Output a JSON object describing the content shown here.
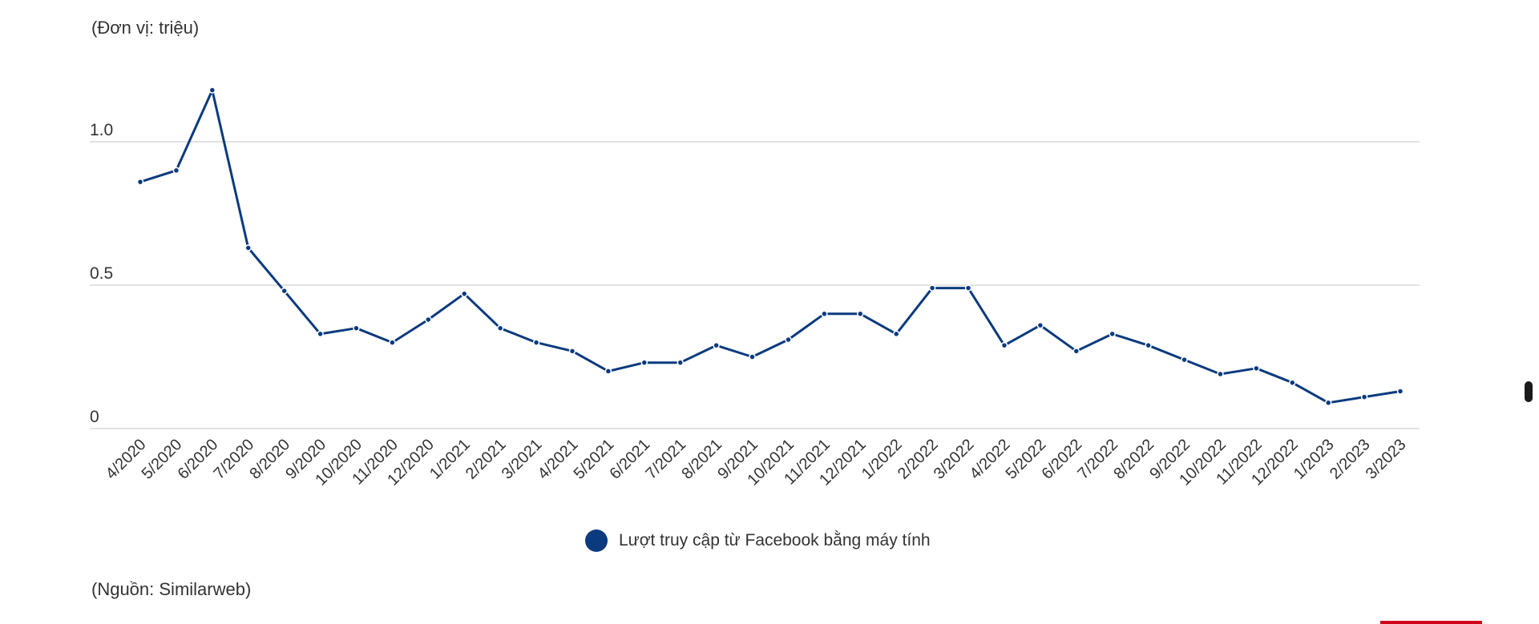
{
  "unit_note": "(Đơn vị: triệu)",
  "source_note": "(Nguồn: Similarweb)",
  "colors": {
    "series": "#0b3a7e",
    "grid": "#d9d9d9",
    "text": "#333333",
    "accent": "#d0021b"
  },
  "chart_data": {
    "type": "line",
    "categories": [
      "4/2020",
      "5/2020",
      "6/2020",
      "7/2020",
      "8/2020",
      "9/2020",
      "10/2020",
      "11/2020",
      "12/2020",
      "1/2021",
      "2/2021",
      "3/2021",
      "4/2021",
      "5/2021",
      "6/2021",
      "7/2021",
      "8/2021",
      "9/2021",
      "10/2021",
      "11/2021",
      "12/2021",
      "1/2022",
      "2/2022",
      "3/2022",
      "4/2022",
      "5/2022",
      "6/2022",
      "7/2022",
      "8/2022",
      "9/2022",
      "10/2022",
      "11/2022",
      "12/2022",
      "1/2023",
      "2/2023",
      "3/2023"
    ],
    "series": [
      {
        "name": "Lượt truy cập từ Facebook bằng máy tính",
        "values": [
          0.86,
          0.9,
          1.18,
          0.63,
          0.48,
          0.33,
          0.35,
          0.3,
          0.38,
          0.47,
          0.35,
          0.3,
          0.27,
          0.2,
          0.23,
          0.23,
          0.29,
          0.25,
          0.31,
          0.4,
          0.4,
          0.33,
          0.49,
          0.49,
          0.29,
          0.36,
          0.27,
          0.33,
          0.29,
          0.24,
          0.19,
          0.21,
          0.16,
          0.09,
          0.11,
          0.13
        ]
      }
    ],
    "yticks": [
      {
        "value": 0,
        "label": "0"
      },
      {
        "value": 0.5,
        "label": "0.5"
      },
      {
        "value": 1.0,
        "label": "1.0"
      }
    ],
    "ylim": [
      0,
      1.0
    ],
    "grid": true,
    "legend_position": "bottom-center"
  }
}
